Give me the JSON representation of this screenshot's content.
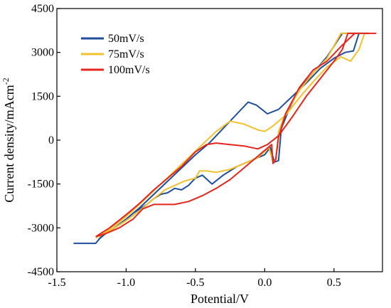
{
  "chart_data": {
    "type": "line",
    "xlabel": "Potential/V",
    "ylabel": "Current density/mAcm",
    "ylabel_superscript": "-2",
    "xlim": [
      -1.5,
      0.85
    ],
    "ylim": [
      -4500,
      4500
    ],
    "xticks": [
      "-1.5",
      "-1.0",
      "-0.5",
      "0.0",
      "0.5"
    ],
    "xtick_values": [
      -1.5,
      -1.0,
      -0.5,
      0.0,
      0.5
    ],
    "yticks": [
      "-4500",
      "-3000",
      "-1500",
      "0",
      "1500",
      "3000",
      "4500"
    ],
    "ytick_values": [
      -4500,
      -3000,
      -1500,
      0,
      1500,
      3000,
      4500
    ],
    "legend_position": "top-left",
    "series": [
      {
        "name": "50mV/s",
        "color": "#1f4e9a",
        "points": [
          [
            -1.38,
            -3530
          ],
          [
            -1.22,
            -3530
          ],
          [
            -1.18,
            -3300
          ],
          [
            -1.1,
            -3050
          ],
          [
            -1.0,
            -2700
          ],
          [
            -0.9,
            -2300
          ],
          [
            -0.8,
            -1850
          ],
          [
            -0.7,
            -1400
          ],
          [
            -0.6,
            -950
          ],
          [
            -0.5,
            -500
          ],
          [
            -0.4,
            -100
          ],
          [
            -0.3,
            400
          ],
          [
            -0.2,
            900
          ],
          [
            -0.12,
            1300
          ],
          [
            -0.06,
            1200
          ],
          [
            0.02,
            900
          ],
          [
            0.1,
            1050
          ],
          [
            0.2,
            1500
          ],
          [
            0.3,
            1950
          ],
          [
            0.4,
            2450
          ],
          [
            0.5,
            2800
          ],
          [
            0.58,
            3000
          ],
          [
            0.64,
            3050
          ],
          [
            0.68,
            3650
          ],
          [
            0.75,
            3650
          ],
          [
            0.56,
            3650
          ],
          [
            0.45,
            2850
          ],
          [
            0.35,
            2300
          ],
          [
            0.25,
            1750
          ],
          [
            0.18,
            1100
          ],
          [
            0.12,
            400
          ],
          [
            0.1,
            -700
          ],
          [
            0.07,
            -750
          ],
          [
            0.04,
            -250
          ],
          [
            0.0,
            -500
          ],
          [
            -0.1,
            -700
          ],
          [
            -0.2,
            -900
          ],
          [
            -0.3,
            -1200
          ],
          [
            -0.38,
            -1500
          ],
          [
            -0.45,
            -1200
          ],
          [
            -0.5,
            -1300
          ],
          [
            -0.55,
            -1550
          ],
          [
            -0.6,
            -1700
          ],
          [
            -0.65,
            -1650
          ],
          [
            -0.7,
            -1800
          ],
          [
            -0.75,
            -1850
          ],
          [
            -0.8,
            -2000
          ],
          [
            -0.85,
            -2200
          ],
          [
            -0.95,
            -2500
          ],
          [
            -1.05,
            -2900
          ],
          [
            -1.15,
            -3200
          ],
          [
            -1.2,
            -3400
          ]
        ]
      },
      {
        "name": "75mV/s",
        "color": "#f2c12e",
        "points": [
          [
            -1.22,
            -3350
          ],
          [
            -1.15,
            -3150
          ],
          [
            -1.05,
            -2800
          ],
          [
            -0.95,
            -2400
          ],
          [
            -0.85,
            -1950
          ],
          [
            -0.75,
            -1500
          ],
          [
            -0.65,
            -1050
          ],
          [
            -0.55,
            -600
          ],
          [
            -0.45,
            -150
          ],
          [
            -0.35,
            300
          ],
          [
            -0.25,
            650
          ],
          [
            -0.15,
            550
          ],
          [
            -0.05,
            350
          ],
          [
            0.0,
            300
          ],
          [
            0.05,
            450
          ],
          [
            0.15,
            850
          ],
          [
            0.25,
            1450
          ],
          [
            0.35,
            2000
          ],
          [
            0.45,
            2500
          ],
          [
            0.55,
            2850
          ],
          [
            0.62,
            2700
          ],
          [
            0.68,
            3100
          ],
          [
            0.72,
            3650
          ],
          [
            0.62,
            3650
          ],
          [
            0.55,
            3650
          ],
          [
            0.45,
            2800
          ],
          [
            0.35,
            2300
          ],
          [
            0.25,
            1700
          ],
          [
            0.15,
            900
          ],
          [
            0.1,
            300
          ],
          [
            0.08,
            -650
          ],
          [
            0.06,
            -750
          ],
          [
            0.03,
            -250
          ],
          [
            -0.05,
            -600
          ],
          [
            -0.15,
            -800
          ],
          [
            -0.25,
            -1000
          ],
          [
            -0.35,
            -1100
          ],
          [
            -0.42,
            -1050
          ],
          [
            -0.47,
            -1050
          ],
          [
            -0.5,
            -1300
          ],
          [
            -0.58,
            -1400
          ],
          [
            -0.65,
            -1550
          ],
          [
            -0.72,
            -1700
          ],
          [
            -0.8,
            -2000
          ],
          [
            -0.9,
            -2400
          ],
          [
            -1.0,
            -2750
          ],
          [
            -1.1,
            -3050
          ],
          [
            -1.2,
            -3300
          ]
        ]
      },
      {
        "name": "100mV/s",
        "color": "#e5261f",
        "points": [
          [
            -1.22,
            -3300
          ],
          [
            -1.12,
            -3000
          ],
          [
            -1.0,
            -2550
          ],
          [
            -0.9,
            -2150
          ],
          [
            -0.8,
            -1700
          ],
          [
            -0.7,
            -1300
          ],
          [
            -0.6,
            -900
          ],
          [
            -0.5,
            -400
          ],
          [
            -0.42,
            -150
          ],
          [
            -0.35,
            -100
          ],
          [
            -0.25,
            -150
          ],
          [
            -0.15,
            -200
          ],
          [
            -0.05,
            -300
          ],
          [
            0.02,
            -150
          ],
          [
            0.1,
            150
          ],
          [
            0.2,
            800
          ],
          [
            0.3,
            1500
          ],
          [
            0.4,
            2100
          ],
          [
            0.5,
            2700
          ],
          [
            0.56,
            3100
          ],
          [
            0.6,
            3650
          ],
          [
            0.7,
            3650
          ],
          [
            0.8,
            3650
          ],
          [
            0.65,
            3650
          ],
          [
            0.55,
            3200
          ],
          [
            0.45,
            2700
          ],
          [
            0.35,
            2400
          ],
          [
            0.25,
            1800
          ],
          [
            0.15,
            900
          ],
          [
            0.1,
            100
          ],
          [
            0.08,
            -650
          ],
          [
            0.06,
            -800
          ],
          [
            0.05,
            -150
          ],
          [
            -0.05,
            -550
          ],
          [
            -0.15,
            -950
          ],
          [
            -0.25,
            -1350
          ],
          [
            -0.35,
            -1650
          ],
          [
            -0.45,
            -1900
          ],
          [
            -0.55,
            -2100
          ],
          [
            -0.65,
            -2200
          ],
          [
            -0.72,
            -2200
          ],
          [
            -0.8,
            -2200
          ],
          [
            -0.88,
            -2350
          ],
          [
            -0.95,
            -2700
          ],
          [
            -1.05,
            -3000
          ],
          [
            -1.15,
            -3200
          ],
          [
            -1.22,
            -3300
          ]
        ]
      }
    ]
  }
}
